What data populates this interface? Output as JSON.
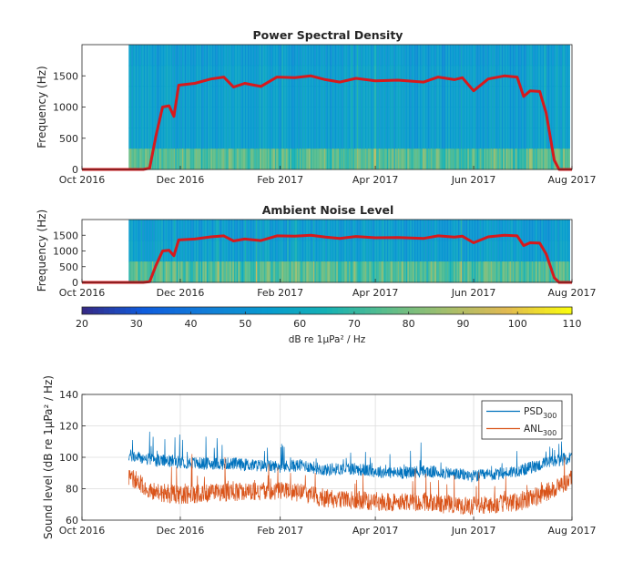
{
  "chart_data": [
    {
      "type": "heatmap",
      "title": "Power Spectral Density",
      "ylabel": "Frequency (Hz)",
      "ylim": [
        0,
        2000
      ],
      "y_ticks": [
        "0",
        "500",
        "1000",
        "1500"
      ],
      "x_ticks": [
        "Oct 2016",
        "Dec 2016",
        "Feb 2017",
        "Apr 2017",
        "Jun 2017",
        "Aug 2017"
      ],
      "data_start": "Oct 30, 2016",
      "data_end": "Jul 30, 2017",
      "upper_frequency_line": {
        "name": "",
        "color": "#d7191c",
        "x": [
          "Oct 1, 2016",
          "Nov 3, 2016",
          "Nov 8, 2016",
          "Nov 12, 2016",
          "Nov 16, 2016",
          "Nov 20, 2016",
          "Nov 24, 2016",
          "Nov 27, 2016",
          "Nov 30, 2016",
          "Dec 10, 2016",
          "Dec 20, 2016",
          "Dec 28, 2016",
          "Jan 3, 2017",
          "Jan 10, 2017",
          "Jan 20, 2017",
          "Jan 30, 2017",
          "Feb 10, 2017",
          "Feb 20, 2017",
          "Mar 1, 2017",
          "Mar 10, 2017",
          "Mar 20, 2017",
          "Apr 1, 2017",
          "Apr 15, 2017",
          "May 1, 2017",
          "May 10, 2017",
          "May 20, 2017",
          "May 25, 2017",
          "Jun 1, 2017",
          "Jun 10, 2017",
          "Jun 20, 2017",
          "Jun 28, 2017",
          "Jul 2, 2017",
          "Jul 6, 2017",
          "Jul 12, 2017",
          "Jul 16, 2017",
          "Jul 21, 2017",
          "Jul 24, 2017",
          "Aug 1, 2017"
        ],
        "y": [
          0,
          0,
          0,
          20,
          550,
          1000,
          1020,
          850,
          1350,
          1380,
          1450,
          1480,
          1320,
          1380,
          1330,
          1480,
          1470,
          1500,
          1440,
          1400,
          1460,
          1420,
          1430,
          1400,
          1480,
          1440,
          1470,
          1260,
          1450,
          1500,
          1480,
          1170,
          1260,
          1250,
          900,
          150,
          0,
          0
        ]
      }
    },
    {
      "type": "heatmap",
      "title": "Ambient Noise Level",
      "ylabel": "Frequency (Hz)",
      "ylim": [
        0,
        2000
      ],
      "y_ticks": [
        "0",
        "500",
        "1000",
        "1500"
      ],
      "x_ticks": [
        "Oct 2016",
        "Dec 2016",
        "Feb 2017",
        "Apr 2017",
        "Jun 2017",
        "Aug 2017"
      ],
      "data_start": "Oct 30, 2016",
      "data_end": "Jul 30, 2017",
      "upper_frequency_line": {
        "name": "",
        "color": "#d7191c",
        "same_as_power_spectral_density": true
      }
    },
    {
      "type": "colorbar",
      "label": "dB re 1μPa² / Hz",
      "ticks": [
        "20",
        "30",
        "40",
        "50",
        "60",
        "70",
        "80",
        "90",
        "100",
        "110"
      ],
      "range": [
        20,
        110
      ],
      "colormap": "parula"
    },
    {
      "type": "line",
      "title": "",
      "ylabel": "Sound level (dB re 1μPa² / Hz)",
      "ylim": [
        60,
        140
      ],
      "y_ticks": [
        "60",
        "80",
        "100",
        "120",
        "140"
      ],
      "x_ticks": [
        "Oct 2016",
        "Dec 2016",
        "Feb 2017",
        "Apr 2017",
        "Jun 2017",
        "Aug 2017"
      ],
      "grid": true,
      "legend_position": "top-right",
      "series": [
        {
          "name": "PSD",
          "subscript": "300",
          "color": "#0072bd",
          "x": [
            "Oct 30, 2016",
            "Nov 15, 2016",
            "Dec 1, 2016",
            "Dec 15, 2016",
            "Jan 1, 2017",
            "Jan 15, 2017",
            "Feb 1, 2017",
            "Feb 15, 2017",
            "Mar 1, 2017",
            "Mar 15, 2017",
            "Apr 1, 2017",
            "Apr 15, 2017",
            "May 1, 2017",
            "May 15, 2017",
            "Jun 1, 2017",
            "Jun 15, 2017",
            "Jul 1, 2017",
            "Jul 15, 2017",
            "Aug 1, 2017"
          ],
          "y": [
            101,
            98,
            97,
            96,
            96,
            95,
            94,
            95,
            92,
            93,
            91,
            90,
            91,
            90,
            88,
            89,
            92,
            96,
            100
          ]
        },
        {
          "name": "ANL",
          "subscript": "300",
          "color": "#d95319",
          "x": [
            "Oct 30, 2016",
            "Nov 15, 2016",
            "Dec 1, 2016",
            "Dec 15, 2016",
            "Jan 1, 2017",
            "Jan 15, 2017",
            "Feb 1, 2017",
            "Feb 15, 2017",
            "Mar 1, 2017",
            "Mar 15, 2017",
            "Apr 1, 2017",
            "Apr 15, 2017",
            "May 1, 2017",
            "May 15, 2017",
            "Jun 1, 2017",
            "Jun 15, 2017",
            "Jul 1, 2017",
            "Jul 15, 2017",
            "Aug 1, 2017"
          ],
          "y": [
            88,
            78,
            76,
            77,
            78,
            78,
            79,
            77,
            74,
            73,
            72,
            71,
            72,
            70,
            69,
            70,
            72,
            77,
            86
          ]
        }
      ]
    }
  ]
}
